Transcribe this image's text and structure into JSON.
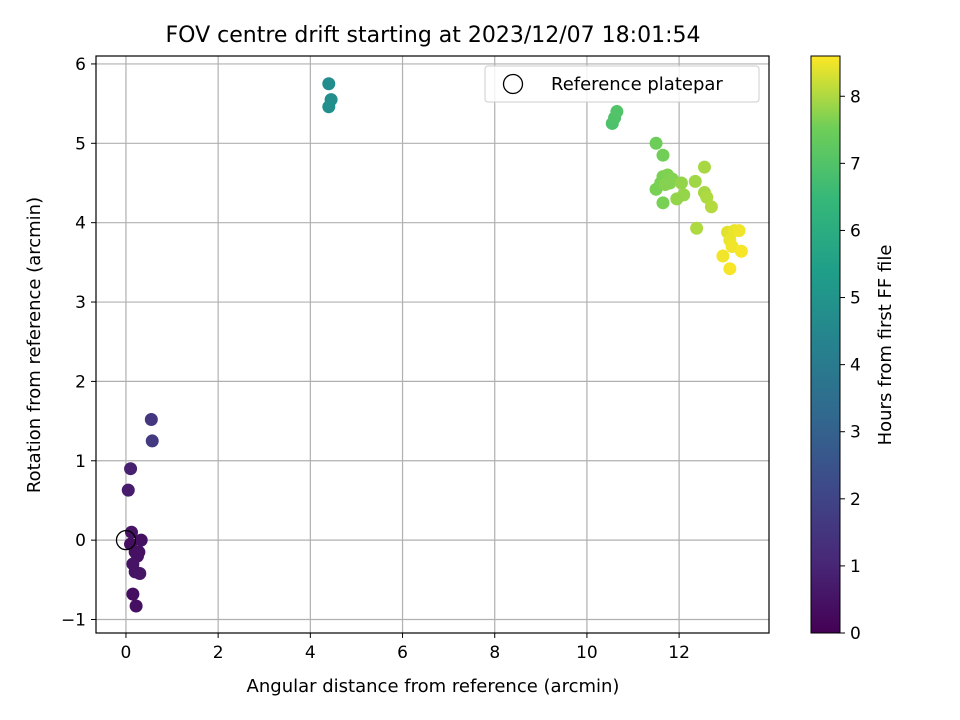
{
  "chart_data": {
    "type": "scatter",
    "title": "FOV centre drift starting at 2023/12/07 18:01:54",
    "xlabel": "Angular distance from reference (arcmin)",
    "ylabel": "Rotation from reference (arcmin)",
    "xlim": [
      -0.65,
      13.95
    ],
    "ylim": [
      -1.17,
      6.1
    ],
    "xticks": [
      0,
      2,
      4,
      6,
      8,
      10,
      12
    ],
    "yticks": [
      -1,
      0,
      1,
      2,
      3,
      4,
      5,
      6
    ],
    "grid": true,
    "legend": {
      "position": "top-right",
      "entries": [
        "Reference platepar"
      ]
    },
    "colorbar": {
      "label": "Hours from first FF file",
      "range": [
        0,
        8.6
      ],
      "ticks": [
        0,
        1,
        2,
        3,
        4,
        5,
        6,
        7,
        8
      ],
      "colormap": "viridis"
    },
    "reference_point": {
      "x": 0,
      "y": 0
    },
    "points": [
      {
        "x": 0.1,
        "y": -0.05,
        "t": 0.35
      },
      {
        "x": 0.2,
        "y": -0.15,
        "t": 0.4
      },
      {
        "x": 0.25,
        "y": -0.2,
        "t": 0.45
      },
      {
        "x": 0.15,
        "y": -0.3,
        "t": 0.5
      },
      {
        "x": 0.2,
        "y": -0.4,
        "t": 0.5
      },
      {
        "x": 0.3,
        "y": -0.42,
        "t": 0.55
      },
      {
        "x": 0.28,
        "y": -0.15,
        "t": 0.45
      },
      {
        "x": 0.33,
        "y": 0.0,
        "t": 0.4
      },
      {
        "x": 0.12,
        "y": 0.1,
        "t": 0.5
      },
      {
        "x": 0.15,
        "y": -0.68,
        "t": 0.35
      },
      {
        "x": 0.22,
        "y": -0.83,
        "t": 0.4
      },
      {
        "x": 0.05,
        "y": 0.63,
        "t": 0.75
      },
      {
        "x": 0.1,
        "y": 0.9,
        "t": 0.85
      },
      {
        "x": 0.55,
        "y": 1.52,
        "t": 1.55
      },
      {
        "x": 0.57,
        "y": 1.25,
        "t": 1.65
      },
      {
        "x": 4.4,
        "y": 5.75,
        "t": 4.7
      },
      {
        "x": 4.45,
        "y": 5.55,
        "t": 4.75
      },
      {
        "x": 4.4,
        "y": 5.46,
        "t": 4.8
      },
      {
        "x": 10.55,
        "y": 5.25,
        "t": 6.9
      },
      {
        "x": 10.6,
        "y": 5.32,
        "t": 6.95
      },
      {
        "x": 10.65,
        "y": 5.4,
        "t": 7.0
      },
      {
        "x": 11.5,
        "y": 5.0,
        "t": 7.5
      },
      {
        "x": 11.65,
        "y": 4.85,
        "t": 7.55
      },
      {
        "x": 11.5,
        "y": 4.42,
        "t": 7.6
      },
      {
        "x": 11.6,
        "y": 4.5,
        "t": 7.6
      },
      {
        "x": 11.65,
        "y": 4.58,
        "t": 7.62
      },
      {
        "x": 11.75,
        "y": 4.6,
        "t": 7.65
      },
      {
        "x": 11.85,
        "y": 4.55,
        "t": 7.68
      },
      {
        "x": 11.7,
        "y": 4.48,
        "t": 7.7
      },
      {
        "x": 11.8,
        "y": 4.5,
        "t": 7.7
      },
      {
        "x": 11.65,
        "y": 4.25,
        "t": 7.6
      },
      {
        "x": 12.05,
        "y": 4.5,
        "t": 7.8
      },
      {
        "x": 12.1,
        "y": 4.35,
        "t": 7.82
      },
      {
        "x": 11.95,
        "y": 4.3,
        "t": 7.8
      },
      {
        "x": 12.35,
        "y": 4.52,
        "t": 7.9
      },
      {
        "x": 12.55,
        "y": 4.7,
        "t": 7.95
      },
      {
        "x": 12.55,
        "y": 4.38,
        "t": 7.95
      },
      {
        "x": 12.6,
        "y": 4.32,
        "t": 8.0
      },
      {
        "x": 12.7,
        "y": 4.2,
        "t": 8.05
      },
      {
        "x": 12.38,
        "y": 3.93,
        "t": 8.0
      },
      {
        "x": 13.05,
        "y": 3.88,
        "t": 8.4
      },
      {
        "x": 13.2,
        "y": 3.9,
        "t": 8.45
      },
      {
        "x": 13.1,
        "y": 3.78,
        "t": 8.45
      },
      {
        "x": 13.15,
        "y": 3.7,
        "t": 8.5
      },
      {
        "x": 13.3,
        "y": 3.9,
        "t": 8.5
      },
      {
        "x": 13.35,
        "y": 3.64,
        "t": 8.55
      },
      {
        "x": 12.95,
        "y": 3.58,
        "t": 8.5
      },
      {
        "x": 13.1,
        "y": 3.42,
        "t": 8.55
      }
    ]
  }
}
